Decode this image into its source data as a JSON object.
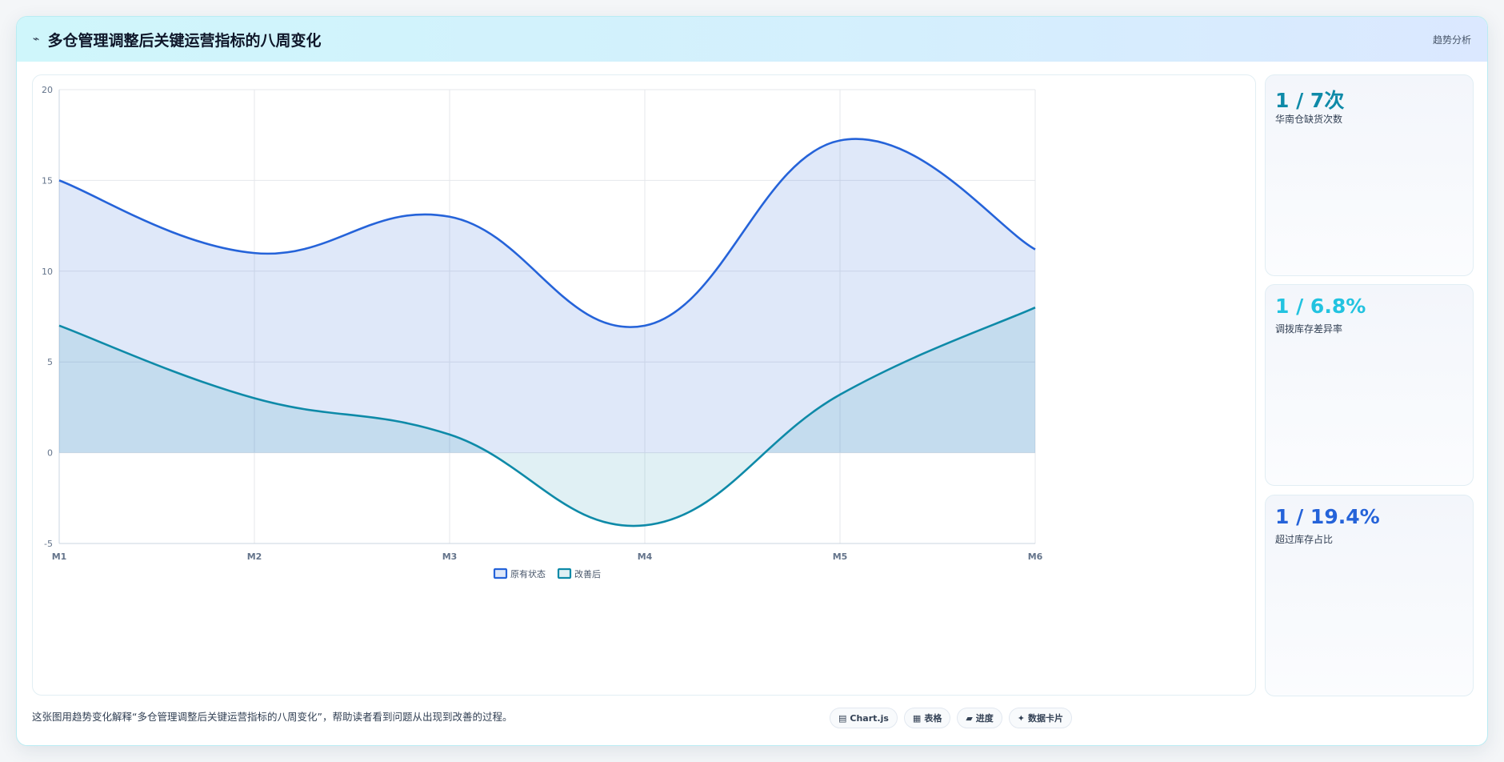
{
  "header": {
    "icon": "⌁",
    "title": "多仓管理调整后关键运营指标的八周变化",
    "tag": "趋势分析"
  },
  "chart_data": {
    "type": "area",
    "x": [
      "M1",
      "M2",
      "M3",
      "M4",
      "M5",
      "M6"
    ],
    "series": [
      {
        "name": "原有状态",
        "values": [
          15,
          11,
          13,
          7,
          17.2,
          11.2
        ],
        "color": "#2563d9"
      },
      {
        "name": "改善后",
        "values": [
          7,
          3,
          1,
          -4,
          3.2,
          8
        ],
        "color": "#0e8aa8"
      }
    ],
    "ylim": [
      -5,
      20
    ],
    "yticks": [
      20,
      15,
      10,
      5,
      0,
      -5
    ],
    "grid": true,
    "legend": "bottom"
  },
  "kpis": [
    {
      "value": "1 / 7次",
      "label": "华南仓缺货次数",
      "color": "#0e8aa8"
    },
    {
      "value": "1 / 6.8%",
      "label": "调拨库存差异率",
      "color": "#22c3e0"
    },
    {
      "value": "1 / 19.4%",
      "label": "超过库存占比",
      "color": "#2563d9"
    }
  ],
  "caption": "这张图用趋势变化解释“多仓管理调整后关键运营指标的八周变化”，帮助读者看到问题从出现到改善的过程。",
  "chips": [
    {
      "icon": "▤",
      "label": "Chart.js"
    },
    {
      "icon": "▦",
      "label": "表格"
    },
    {
      "icon": "▰",
      "label": "进度"
    },
    {
      "icon": "✦",
      "label": "数据卡片"
    }
  ]
}
